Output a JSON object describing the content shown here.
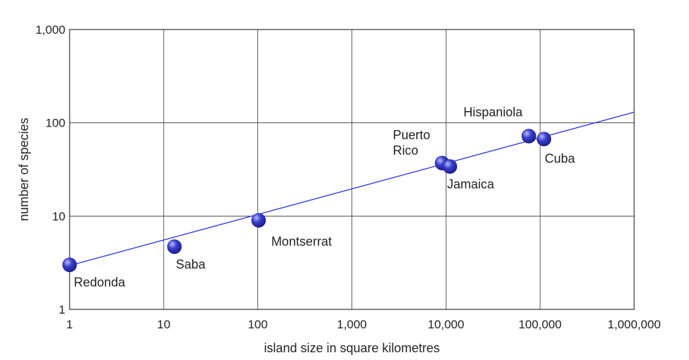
{
  "chart_data": {
    "type": "scatter",
    "title": "",
    "xlabel": "island size in square kilometres",
    "ylabel": "number of species",
    "xscale": "log",
    "yscale": "log",
    "xlim": [
      1,
      1000000
    ],
    "ylim": [
      1,
      1000
    ],
    "grid": true,
    "x_tick_labels": [
      {
        "value": 1,
        "label": "1"
      },
      {
        "value": 10,
        "label": "10"
      },
      {
        "value": 100,
        "label": "100"
      },
      {
        "value": 1000,
        "label": "1,000"
      },
      {
        "value": 10000,
        "label": "10,000"
      },
      {
        "value": 100000,
        "label": "100,000"
      },
      {
        "value": 1000000,
        "label": "1,000,000"
      }
    ],
    "y_tick_labels": [
      {
        "value": 1,
        "label": "1"
      },
      {
        "value": 10,
        "label": "10"
      },
      {
        "value": 100,
        "label": "100"
      },
      {
        "value": 1000,
        "label": "1,000"
      }
    ],
    "points": [
      {
        "name": "Redonda",
        "x": 1,
        "y": 3,
        "label_lines": [
          "Redonda"
        ],
        "label_side": "below-right"
      },
      {
        "name": "Saba",
        "x": 13,
        "y": 4.7,
        "label_lines": [
          "Saba"
        ],
        "label_side": "below-right"
      },
      {
        "name": "Montserrat",
        "x": 102,
        "y": 9,
        "label_lines": [
          "Montserrat"
        ],
        "label_side": "below-right"
      },
      {
        "name": "Puerto Rico",
        "x": 9100,
        "y": 37,
        "label_lines": [
          "Puerto",
          "Rico"
        ],
        "label_side": "above-left"
      },
      {
        "name": "Jamaica",
        "x": 11000,
        "y": 34,
        "label_lines": [
          "Jamaica"
        ],
        "label_side": "below-right"
      },
      {
        "name": "Hispaniola",
        "x": 76000,
        "y": 72,
        "label_lines": [
          "Hispaniola"
        ],
        "label_side": "above-left"
      },
      {
        "name": "Cuba",
        "x": 110000,
        "y": 67,
        "label_lines": [
          "Cuba"
        ],
        "label_side": "below-right"
      }
    ],
    "fit_line": {
      "x": [
        1,
        1000000
      ],
      "y": [
        2.95,
        130
      ]
    },
    "colors": {
      "point_fill": "#3a3fcf",
      "point_highlight": "#b8bcff",
      "point_dark": "#1c1f8a",
      "fit_line": "#2b35e0",
      "grid": "#333333",
      "text": "#222222"
    }
  }
}
